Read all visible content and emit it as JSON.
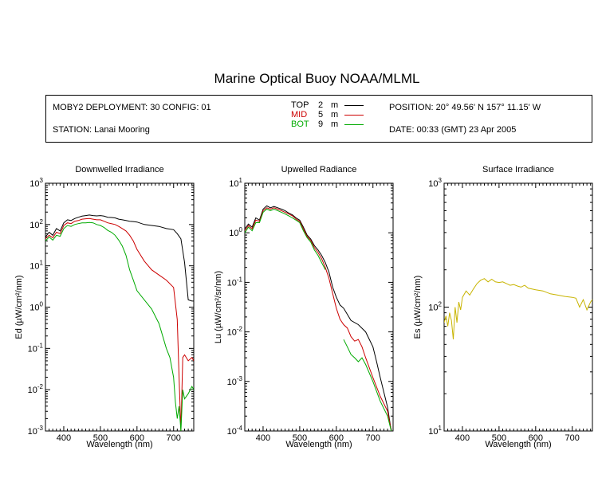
{
  "title": "Marine Optical Buoy NOAA/MLML",
  "info": {
    "deployment": "MOBY2 DEPLOYMENT: 30 CONFIG: 01",
    "station": "STATION: Lanai Mooring",
    "position": "POSITION: 20° 49.56' N   157° 11.15' W",
    "date": "DATE: 00:33 (GMT) 23 Apr 2005",
    "legend": [
      {
        "name": "TOP",
        "depth": "2",
        "unit": "m",
        "color": "#000000"
      },
      {
        "name": "MID",
        "depth": "5",
        "unit": "m",
        "color": "#cc0000"
      },
      {
        "name": "BOT",
        "depth": "9",
        "unit": "m",
        "color": "#00aa00"
      }
    ]
  },
  "chart_data": [
    {
      "type": "line",
      "title": "Downwelled Irradiance",
      "xlabel": "Wavelength (nm)",
      "ylabel": "Ed  (µW/cm²/nm)",
      "xlim": [
        350,
        755
      ],
      "ylim": [
        0.001,
        1000
      ],
      "yscale": "log",
      "xticks": [
        400,
        500,
        600,
        700
      ],
      "yticks": [
        {
          "base": "10",
          "exp": "-3"
        },
        {
          "base": "10",
          "exp": "-2"
        },
        {
          "base": "10",
          "exp": "-1"
        },
        {
          "base": "10",
          "exp": "0"
        },
        {
          "base": "10",
          "exp": "1"
        },
        {
          "base": "10",
          "exp": "2"
        },
        {
          "base": "10",
          "exp": "3"
        }
      ],
      "series": [
        {
          "name": "TOP",
          "color": "#000000",
          "x": [
            350,
            360,
            370,
            380,
            390,
            400,
            410,
            420,
            430,
            440,
            450,
            460,
            470,
            480,
            490,
            500,
            510,
            520,
            530,
            540,
            550,
            560,
            570,
            580,
            590,
            600,
            620,
            640,
            660,
            680,
            700,
            710,
            720,
            730,
            740,
            750,
            755
          ],
          "y": [
            50,
            65,
            55,
            80,
            70,
            110,
            130,
            125,
            140,
            150,
            160,
            165,
            170,
            165,
            162,
            165,
            160,
            150,
            148,
            145,
            135,
            130,
            125,
            120,
            118,
            115,
            100,
            95,
            90,
            80,
            75,
            60,
            45,
            12,
            1.5,
            1.4,
            1.4
          ]
        },
        {
          "name": "MID",
          "color": "#cc0000",
          "x": [
            350,
            360,
            370,
            380,
            390,
            400,
            410,
            420,
            430,
            440,
            450,
            460,
            470,
            480,
            490,
            500,
            510,
            520,
            530,
            540,
            550,
            560,
            570,
            580,
            590,
            600,
            620,
            640,
            660,
            680,
            700,
            710,
            715,
            720,
            725,
            730,
            740,
            750,
            755
          ],
          "y": [
            45,
            55,
            48,
            65,
            60,
            95,
            110,
            105,
            120,
            125,
            135,
            138,
            140,
            135,
            130,
            130,
            120,
            110,
            105,
            100,
            90,
            80,
            70,
            55,
            40,
            25,
            13,
            8,
            6,
            4.5,
            3,
            0.5,
            0.02,
            0.001,
            0.06,
            0.07,
            0.05,
            0.06,
            0.05
          ]
        },
        {
          "name": "BOT",
          "color": "#00aa00",
          "x": [
            350,
            360,
            370,
            380,
            390,
            400,
            410,
            420,
            430,
            440,
            450,
            460,
            470,
            480,
            490,
            500,
            510,
            520,
            530,
            540,
            550,
            560,
            570,
            580,
            590,
            600,
            620,
            640,
            660,
            680,
            690,
            700,
            705,
            710,
            715,
            720,
            725,
            730,
            740,
            750,
            755
          ],
          "y": [
            40,
            50,
            42,
            55,
            52,
            80,
            95,
            90,
            100,
            105,
            110,
            110,
            112,
            110,
            100,
            95,
            85,
            72,
            65,
            55,
            42,
            30,
            18,
            8,
            4.5,
            2.5,
            1.5,
            0.9,
            0.4,
            0.1,
            0.06,
            0.02,
            0.005,
            0.002,
            0.004,
            0.001,
            0.01,
            0.006,
            0.008,
            0.012,
            0.01
          ]
        }
      ]
    },
    {
      "type": "line",
      "title": "Upwelled Radiance",
      "xlabel": "Wavelength (nm)",
      "ylabel": "Lu  (µW/cm²/sr/nm)",
      "xlim": [
        350,
        755
      ],
      "ylim": [
        0.0001,
        10
      ],
      "yscale": "log",
      "xticks": [
        400,
        500,
        600,
        700
      ],
      "yticks": [
        {
          "base": "10",
          "exp": "-4"
        },
        {
          "base": "10",
          "exp": "-3"
        },
        {
          "base": "10",
          "exp": "-2"
        },
        {
          "base": "10",
          "exp": "-1"
        },
        {
          "base": "10",
          "exp": "0"
        },
        {
          "base": "10",
          "exp": "1"
        }
      ],
      "series": [
        {
          "name": "TOP",
          "color": "#000000",
          "x": [
            350,
            360,
            370,
            380,
            390,
            400,
            410,
            420,
            430,
            440,
            450,
            460,
            470,
            480,
            490,
            500,
            510,
            520,
            530,
            540,
            550,
            560,
            570,
            580,
            590,
            600,
            610,
            620,
            640,
            660,
            680,
            700,
            710,
            720,
            730,
            740,
            750
          ],
          "y": [
            1.2,
            1.5,
            1.3,
            2,
            1.8,
            3,
            3.5,
            3.2,
            3.4,
            3.2,
            3,
            2.8,
            2.5,
            2.3,
            2,
            1.8,
            1.3,
            0.9,
            0.75,
            0.55,
            0.45,
            0.35,
            0.25,
            0.16,
            0.08,
            0.05,
            0.035,
            0.03,
            0.017,
            0.014,
            0.01,
            0.005,
            0.0025,
            0.0012,
            0.0006,
            0.0003,
            0.0001
          ]
        },
        {
          "name": "MID",
          "color": "#cc0000",
          "x": [
            350,
            360,
            370,
            380,
            390,
            400,
            410,
            420,
            430,
            440,
            450,
            460,
            470,
            480,
            490,
            500,
            510,
            520,
            530,
            540,
            550,
            560,
            570,
            580,
            590,
            600,
            610,
            620,
            630,
            640,
            650,
            660,
            670,
            680,
            700,
            720,
            740,
            750
          ],
          "y": [
            1.1,
            1.4,
            1.2,
            1.8,
            1.7,
            2.8,
            3.2,
            3,
            3.2,
            3,
            2.8,
            2.6,
            2.4,
            2.2,
            1.9,
            1.7,
            1.2,
            0.85,
            0.7,
            0.5,
            0.4,
            0.3,
            0.2,
            0.12,
            0.06,
            0.03,
            0.018,
            0.014,
            0.012,
            0.008,
            0.0065,
            0.007,
            0.005,
            0.003,
            0.0012,
            0.0005,
            0.00025,
            0.0001
          ]
        },
        {
          "name": "BOT",
          "color": "#00aa00",
          "x": [
            350,
            360,
            370,
            380,
            390,
            400,
            410,
            420,
            430,
            440,
            450,
            460,
            470,
            480,
            490,
            500,
            510,
            520,
            530,
            540,
            550,
            560,
            570
          ],
          "y": [
            1,
            1.3,
            1.1,
            1.6,
            1.6,
            2.6,
            3,
            2.8,
            3,
            2.8,
            2.6,
            2.4,
            2.2,
            2,
            1.8,
            1.6,
            1.1,
            0.8,
            0.65,
            0.45,
            0.35,
            0.25,
            0.18
          ]
        },
        {
          "name": "BOT",
          "color": "#00aa00",
          "x": [
            620,
            630,
            640,
            650,
            660,
            670,
            680,
            700,
            720,
            740,
            750
          ],
          "y": [
            0.007,
            0.005,
            0.0035,
            0.003,
            0.0025,
            0.003,
            0.0022,
            0.001,
            0.0004,
            0.0002,
            0.0001
          ]
        }
      ]
    },
    {
      "type": "line",
      "title": "Surface Irradiance",
      "xlabel": "Wavelength (nm)",
      "ylabel": "Es  (µW/cm²/nm)",
      "xlim": [
        350,
        755
      ],
      "ylim": [
        10,
        1000
      ],
      "yscale": "log",
      "xticks": [
        400,
        500,
        600,
        700
      ],
      "yticks": [
        {
          "base": "10",
          "exp": "1"
        },
        {
          "base": "10",
          "exp": "2"
        },
        {
          "base": "10",
          "exp": "3"
        }
      ],
      "series": [
        {
          "name": "Es",
          "color": "#c8b400",
          "x": [
            350,
            355,
            360,
            365,
            370,
            375,
            380,
            385,
            390,
            395,
            400,
            410,
            420,
            430,
            440,
            450,
            460,
            470,
            480,
            490,
            500,
            510,
            520,
            530,
            540,
            550,
            560,
            570,
            580,
            590,
            600,
            620,
            640,
            660,
            680,
            700,
            710,
            720,
            730,
            740,
            750,
            755
          ],
          "y": [
            75,
            85,
            70,
            90,
            78,
            55,
            100,
            75,
            110,
            95,
            120,
            135,
            125,
            140,
            155,
            165,
            170,
            160,
            168,
            160,
            158,
            160,
            155,
            150,
            152,
            148,
            145,
            150,
            142,
            140,
            138,
            135,
            128,
            125,
            122,
            120,
            118,
            100,
            115,
            95,
            110,
            115
          ]
        }
      ]
    }
  ]
}
